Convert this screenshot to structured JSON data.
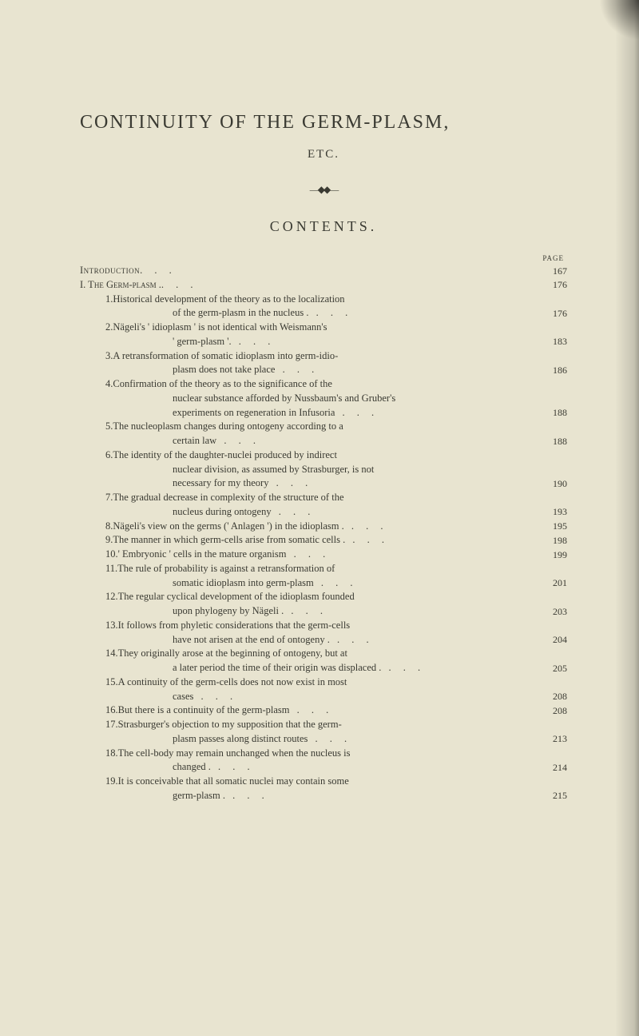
{
  "title": "CONTINUITY OF THE GERM-PLASM,",
  "subtitle": "ETC.",
  "contents_heading": "CONTENTS.",
  "page_label": "PAGE",
  "entries": [
    {
      "level": 0,
      "label": "Introduction",
      "lines": [
        ""
      ],
      "page": "167"
    },
    {
      "level": 1,
      "label": "I. The Germ-plasm .",
      "lines": [
        ""
      ],
      "page": "176"
    },
    {
      "level": 2,
      "label": "1.",
      "lines": [
        "Historical development of the theory as to the localization",
        "of the germ-plasm in the nucleus ."
      ],
      "page": "176"
    },
    {
      "level": 2,
      "label": "2.",
      "lines": [
        "Nägeli's ' idioplasm ' is not identical with Weismann's",
        "' germ-plasm '."
      ],
      "page": "183"
    },
    {
      "level": 2,
      "label": "3.",
      "lines": [
        "A retransformation of somatic idioplasm into germ-idio-",
        "plasm does not take place"
      ],
      "page": "186"
    },
    {
      "level": 2,
      "label": "4.",
      "lines": [
        "Confirmation of the theory as to the significance of the",
        "nuclear substance afforded by Nussbaum's and Gruber's",
        "experiments on regeneration in Infusoria"
      ],
      "page": "188"
    },
    {
      "level": 2,
      "label": "5.",
      "lines": [
        "The nucleoplasm changes during ontogeny according to a",
        "certain law"
      ],
      "page": "188"
    },
    {
      "level": 2,
      "label": "6.",
      "lines": [
        "The identity of the daughter-nuclei produced by indirect",
        "nuclear division, as assumed by Strasburger, is not",
        "necessary for my theory"
      ],
      "page": "190"
    },
    {
      "level": 2,
      "label": "7.",
      "lines": [
        "The gradual decrease in complexity of the structure of the",
        "nucleus during ontogeny"
      ],
      "page": "193"
    },
    {
      "level": 2,
      "label": "8.",
      "lines": [
        "Nägeli's view on the germs (' Anlagen ') in the idioplasm ."
      ],
      "page": "195"
    },
    {
      "level": 2,
      "label": "9.",
      "lines": [
        "The manner in which germ-cells arise from somatic cells ."
      ],
      "page": "198"
    },
    {
      "level": 2,
      "label": "10.",
      "lines": [
        "' Embryonic ' cells in the mature organism"
      ],
      "page": "199"
    },
    {
      "level": 2,
      "label": "11.",
      "lines": [
        "The rule of probability is against a retransformation of",
        "somatic idioplasm into germ-plasm"
      ],
      "page": "201"
    },
    {
      "level": 2,
      "label": "12.",
      "lines": [
        "The regular cyclical development of the idioplasm founded",
        "upon phylogeny by Nägeli ."
      ],
      "page": "203"
    },
    {
      "level": 2,
      "label": "13.",
      "lines": [
        "It follows from phyletic considerations that the germ-cells",
        "have not arisen at the end of ontogeny ."
      ],
      "page": "204"
    },
    {
      "level": 2,
      "label": "14.",
      "lines": [
        "They originally arose at the beginning of ontogeny, but at",
        "a later period the time of their origin was displaced ."
      ],
      "page": "205"
    },
    {
      "level": 2,
      "label": "15.",
      "lines": [
        "A continuity of the germ-cells does not now exist in most",
        "cases"
      ],
      "page": "208"
    },
    {
      "level": 2,
      "label": "16.",
      "lines": [
        "But there is a continuity of the germ-plasm"
      ],
      "page": "208"
    },
    {
      "level": 2,
      "label": "17.",
      "lines": [
        "Strasburger's objection to my supposition that the germ-",
        "plasm passes along distinct routes"
      ],
      "page": "213"
    },
    {
      "level": 2,
      "label": "18.",
      "lines": [
        "The cell-body may remain unchanged when the nucleus is",
        "changed ."
      ],
      "page": "214"
    },
    {
      "level": 2,
      "label": "19.",
      "lines": [
        "It is conceivable that all somatic nuclei may contain some",
        "germ-plasm ."
      ],
      "page": "215"
    }
  ]
}
